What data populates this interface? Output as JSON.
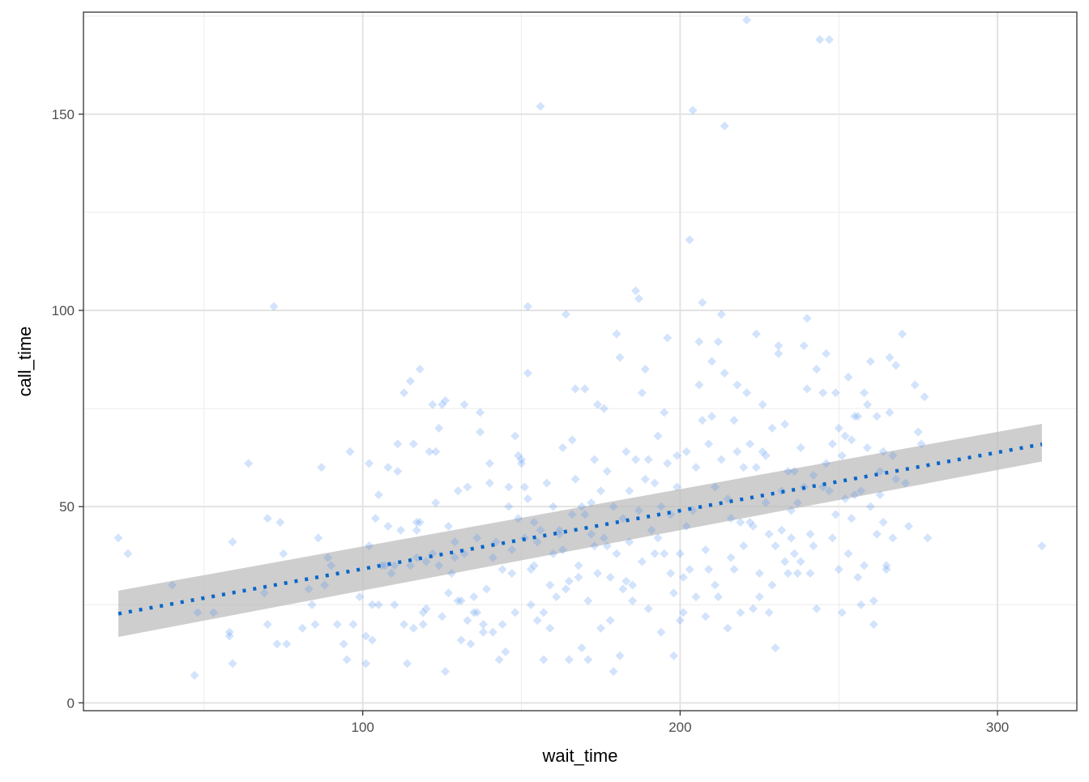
{
  "chart_data": {
    "type": "scatter",
    "title": "",
    "xlabel": "wait_time",
    "ylabel": "call_time",
    "xlim": [
      12,
      325
    ],
    "ylim": [
      -2,
      176
    ],
    "x_ticks": [
      100,
      200,
      300
    ],
    "y_ticks": [
      0,
      50,
      100,
      150
    ],
    "grid": true,
    "legend": "none",
    "point_color": "#4A90F0",
    "point_alpha": 0.25,
    "trend_line": {
      "type": "linear-fit",
      "x": [
        23,
        314
      ],
      "y": [
        22.7,
        65.9
      ],
      "ci_lower": [
        16.8,
        61.5
      ],
      "ci_upper": [
        28.6,
        71.1
      ],
      "line_color": "#0A66C8",
      "band_color": "#BDBDBD"
    },
    "points": [
      [
        23,
        42
      ],
      [
        26,
        38
      ],
      [
        40,
        30
      ],
      [
        47,
        7
      ],
      [
        48,
        23
      ],
      [
        53,
        23
      ],
      [
        58,
        18
      ],
      [
        58,
        17
      ],
      [
        59,
        41
      ],
      [
        59,
        10
      ],
      [
        64,
        61
      ],
      [
        69,
        28
      ],
      [
        70,
        20
      ],
      [
        70,
        47
      ],
      [
        72,
        101
      ],
      [
        73,
        15
      ],
      [
        74,
        46
      ],
      [
        75,
        38
      ],
      [
        76,
        15
      ],
      [
        81,
        19
      ],
      [
        83,
        29
      ],
      [
        84,
        25
      ],
      [
        85,
        20
      ],
      [
        86,
        42
      ],
      [
        87,
        60
      ],
      [
        88,
        30
      ],
      [
        89,
        37
      ],
      [
        90,
        35
      ],
      [
        92,
        20
      ],
      [
        94,
        15
      ],
      [
        95,
        11
      ],
      [
        96,
        64
      ],
      [
        97,
        20
      ],
      [
        99,
        27
      ],
      [
        101,
        17
      ],
      [
        101,
        10
      ],
      [
        102,
        61
      ],
      [
        102,
        40
      ],
      [
        103,
        25
      ],
      [
        103,
        16
      ],
      [
        104,
        47
      ],
      [
        105,
        53
      ],
      [
        105,
        25
      ],
      [
        106,
        35
      ],
      [
        107,
        35
      ],
      [
        108,
        45
      ],
      [
        108,
        60
      ],
      [
        109,
        33
      ],
      [
        110,
        25
      ],
      [
        110,
        35
      ],
      [
        111,
        59
      ],
      [
        111,
        66
      ],
      [
        112,
        44
      ],
      [
        113,
        20
      ],
      [
        113,
        79
      ],
      [
        114,
        10
      ],
      [
        115,
        35
      ],
      [
        115,
        82
      ],
      [
        116,
        66
      ],
      [
        116,
        19
      ],
      [
        117,
        37
      ],
      [
        117,
        46
      ],
      [
        117,
        44
      ],
      [
        118,
        85
      ],
      [
        118,
        46
      ],
      [
        119,
        23
      ],
      [
        119,
        20
      ],
      [
        120,
        24
      ],
      [
        120,
        36
      ],
      [
        121,
        64
      ],
      [
        122,
        76
      ],
      [
        122,
        38
      ],
      [
        123,
        64
      ],
      [
        123,
        51
      ],
      [
        124,
        70
      ],
      [
        124,
        35
      ],
      [
        125,
        22
      ],
      [
        125,
        76
      ],
      [
        126,
        8
      ],
      [
        126,
        77
      ],
      [
        127,
        28
      ],
      [
        127,
        45
      ],
      [
        128,
        33
      ],
      [
        129,
        41
      ],
      [
        129,
        37
      ],
      [
        130,
        26
      ],
      [
        130,
        54
      ],
      [
        131,
        16
      ],
      [
        131,
        26
      ],
      [
        132,
        76
      ],
      [
        132,
        38
      ],
      [
        133,
        21
      ],
      [
        133,
        55
      ],
      [
        134,
        15
      ],
      [
        135,
        27
      ],
      [
        135,
        23
      ],
      [
        136,
        42
      ],
      [
        136,
        23
      ],
      [
        137,
        74
      ],
      [
        137,
        69
      ],
      [
        138,
        20
      ],
      [
        138,
        18
      ],
      [
        139,
        29
      ],
      [
        140,
        61
      ],
      [
        140,
        56
      ],
      [
        141,
        18
      ],
      [
        141,
        37
      ],
      [
        142,
        41
      ],
      [
        143,
        11
      ],
      [
        144,
        20
      ],
      [
        144,
        34
      ],
      [
        145,
        13
      ],
      [
        146,
        55
      ],
      [
        146,
        50
      ],
      [
        147,
        39
      ],
      [
        147,
        33
      ],
      [
        148,
        68
      ],
      [
        148,
        23
      ],
      [
        149,
        47
      ],
      [
        149,
        63
      ],
      [
        150,
        61
      ],
      [
        150,
        62
      ],
      [
        151,
        55
      ],
      [
        151,
        42
      ],
      [
        152,
        101
      ],
      [
        152,
        84
      ],
      [
        152,
        52
      ],
      [
        153,
        25
      ],
      [
        153,
        34
      ],
      [
        154,
        35
      ],
      [
        154,
        46
      ],
      [
        155,
        41
      ],
      [
        155,
        21
      ],
      [
        156,
        44
      ],
      [
        156,
        152
      ],
      [
        157,
        11
      ],
      [
        157,
        23
      ],
      [
        158,
        56
      ],
      [
        159,
        30
      ],
      [
        159,
        19
      ],
      [
        160,
        50
      ],
      [
        160,
        38
      ],
      [
        161,
        27
      ],
      [
        162,
        43
      ],
      [
        162,
        44
      ],
      [
        163,
        65
      ],
      [
        163,
        39
      ],
      [
        164,
        99
      ],
      [
        164,
        29
      ],
      [
        165,
        31
      ],
      [
        165,
        11
      ],
      [
        166,
        48
      ],
      [
        166,
        67
      ],
      [
        167,
        80
      ],
      [
        167,
        57
      ],
      [
        168,
        35
      ],
      [
        168,
        32
      ],
      [
        169,
        50
      ],
      [
        169,
        14
      ],
      [
        170,
        80
      ],
      [
        170,
        48
      ],
      [
        171,
        11
      ],
      [
        171,
        26
      ],
      [
        172,
        43
      ],
      [
        172,
        51
      ],
      [
        173,
        62
      ],
      [
        173,
        40
      ],
      [
        174,
        76
      ],
      [
        174,
        33
      ],
      [
        175,
        54
      ],
      [
        175,
        19
      ],
      [
        176,
        75
      ],
      [
        176,
        42
      ],
      [
        177,
        59
      ],
      [
        177,
        40
      ],
      [
        178,
        32
      ],
      [
        178,
        21
      ],
      [
        179,
        8
      ],
      [
        179,
        50
      ],
      [
        180,
        94
      ],
      [
        180,
        38
      ],
      [
        181,
        88
      ],
      [
        181,
        12
      ],
      [
        182,
        47
      ],
      [
        182,
        29
      ],
      [
        183,
        64
      ],
      [
        183,
        31
      ],
      [
        184,
        54
      ],
      [
        184,
        41
      ],
      [
        185,
        30
      ],
      [
        185,
        26
      ],
      [
        186,
        62
      ],
      [
        186,
        105
      ],
      [
        187,
        103
      ],
      [
        187,
        49
      ],
      [
        188,
        79
      ],
      [
        188,
        36
      ],
      [
        189,
        85
      ],
      [
        189,
        57
      ],
      [
        190,
        62
      ],
      [
        190,
        24
      ],
      [
        191,
        44
      ],
      [
        192,
        38
      ],
      [
        192,
        56
      ],
      [
        193,
        68
      ],
      [
        193,
        42
      ],
      [
        194,
        50
      ],
      [
        194,
        18
      ],
      [
        195,
        74
      ],
      [
        195,
        38
      ],
      [
        196,
        93
      ],
      [
        196,
        61
      ],
      [
        197,
        48
      ],
      [
        197,
        33
      ],
      [
        198,
        12
      ],
      [
        198,
        28
      ],
      [
        199,
        63
      ],
      [
        199,
        55
      ],
      [
        200,
        21
      ],
      [
        200,
        38
      ],
      [
        201,
        23
      ],
      [
        201,
        32
      ],
      [
        202,
        64
      ],
      [
        202,
        45
      ],
      [
        203,
        118
      ],
      [
        203,
        34
      ],
      [
        204,
        151
      ],
      [
        204,
        49
      ],
      [
        205,
        60
      ],
      [
        205,
        27
      ],
      [
        206,
        81
      ],
      [
        206,
        92
      ],
      [
        207,
        102
      ],
      [
        207,
        72
      ],
      [
        208,
        39
      ],
      [
        208,
        22
      ],
      [
        209,
        66
      ],
      [
        209,
        34
      ],
      [
        210,
        87
      ],
      [
        210,
        73
      ],
      [
        211,
        55
      ],
      [
        211,
        30
      ],
      [
        212,
        92
      ],
      [
        212,
        27
      ],
      [
        213,
        99
      ],
      [
        213,
        62
      ],
      [
        214,
        147
      ],
      [
        214,
        84
      ],
      [
        215,
        52
      ],
      [
        215,
        19
      ],
      [
        216,
        47
      ],
      [
        216,
        37
      ],
      [
        217,
        72
      ],
      [
        217,
        34
      ],
      [
        218,
        81
      ],
      [
        218,
        64
      ],
      [
        219,
        46
      ],
      [
        219,
        23
      ],
      [
        220,
        60
      ],
      [
        220,
        40
      ],
      [
        221,
        174
      ],
      [
        221,
        79
      ],
      [
        222,
        66
      ],
      [
        222,
        46
      ],
      [
        223,
        45
      ],
      [
        223,
        24
      ],
      [
        224,
        94
      ],
      [
        224,
        60
      ],
      [
        225,
        33
      ],
      [
        225,
        27
      ],
      [
        226,
        76
      ],
      [
        226,
        64
      ],
      [
        227,
        63
      ],
      [
        227,
        51
      ],
      [
        228,
        43
      ],
      [
        228,
        23
      ],
      [
        229,
        70
      ],
      [
        229,
        30
      ],
      [
        230,
        40
      ],
      [
        230,
        14
      ],
      [
        231,
        91
      ],
      [
        231,
        89
      ],
      [
        232,
        54
      ],
      [
        232,
        44
      ],
      [
        233,
        71
      ],
      [
        233,
        36
      ],
      [
        234,
        59
      ],
      [
        234,
        33
      ],
      [
        235,
        49
      ],
      [
        235,
        42
      ],
      [
        236,
        59
      ],
      [
        236,
        38
      ],
      [
        237,
        51
      ],
      [
        237,
        33
      ],
      [
        238,
        65
      ],
      [
        238,
        36
      ],
      [
        239,
        91
      ],
      [
        239,
        55
      ],
      [
        240,
        98
      ],
      [
        240,
        80
      ],
      [
        241,
        43
      ],
      [
        241,
        33
      ],
      [
        242,
        58
      ],
      [
        242,
        40
      ],
      [
        243,
        85
      ],
      [
        243,
        24
      ],
      [
        244,
        169
      ],
      [
        245,
        79
      ],
      [
        245,
        55
      ],
      [
        246,
        89
      ],
      [
        246,
        61
      ],
      [
        247,
        169
      ],
      [
        247,
        54
      ],
      [
        248,
        66
      ],
      [
        248,
        42
      ],
      [
        249,
        79
      ],
      [
        249,
        48
      ],
      [
        250,
        70
      ],
      [
        250,
        34
      ],
      [
        251,
        63
      ],
      [
        251,
        23
      ],
      [
        252,
        68
      ],
      [
        252,
        52
      ],
      [
        253,
        83
      ],
      [
        253,
        38
      ],
      [
        254,
        67
      ],
      [
        254,
        47
      ],
      [
        255,
        73
      ],
      [
        255,
        53
      ],
      [
        256,
        73
      ],
      [
        256,
        32
      ],
      [
        257,
        54
      ],
      [
        257,
        25
      ],
      [
        258,
        79
      ],
      [
        258,
        35
      ],
      [
        259,
        76
      ],
      [
        259,
        65
      ],
      [
        260,
        87
      ],
      [
        260,
        50
      ],
      [
        261,
        26
      ],
      [
        261,
        20
      ],
      [
        262,
        73
      ],
      [
        262,
        43
      ],
      [
        263,
        53
      ],
      [
        263,
        59
      ],
      [
        264,
        64
      ],
      [
        264,
        46
      ],
      [
        265,
        34
      ],
      [
        265,
        35
      ],
      [
        266,
        88
      ],
      [
        266,
        74
      ],
      [
        267,
        63
      ],
      [
        267,
        42
      ],
      [
        268,
        86
      ],
      [
        268,
        57
      ],
      [
        270,
        94
      ],
      [
        271,
        56
      ],
      [
        272,
        45
      ],
      [
        274,
        81
      ],
      [
        275,
        69
      ],
      [
        276,
        66
      ],
      [
        277,
        78
      ],
      [
        278,
        42
      ],
      [
        314,
        40
      ]
    ]
  }
}
